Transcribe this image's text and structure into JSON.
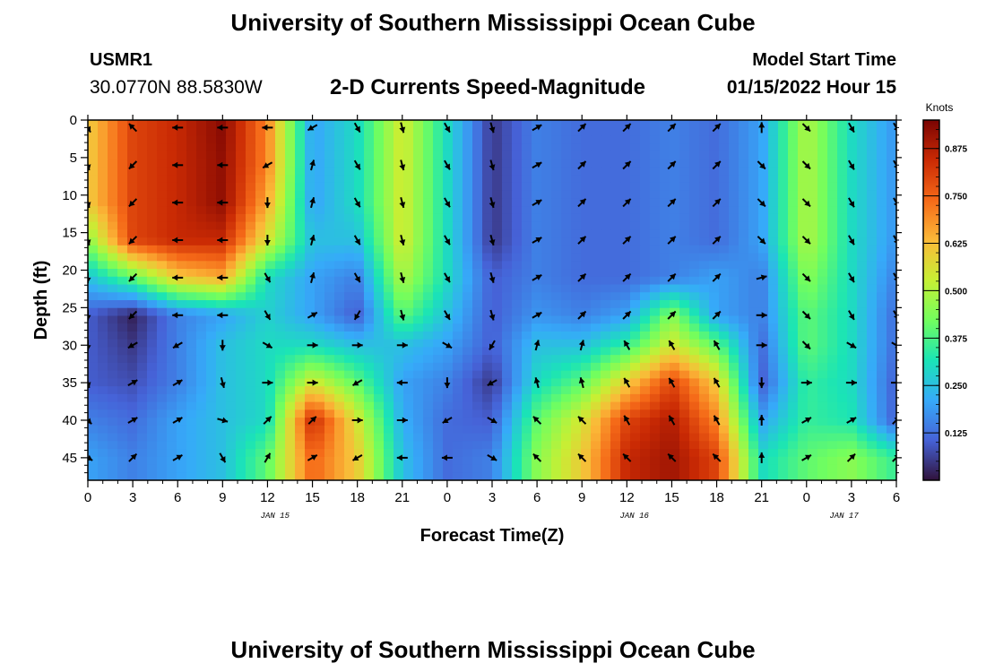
{
  "header": {
    "title": "University of Southern Mississippi Ocean Cube",
    "station_id": "USMR1",
    "station_location": "30.0770N  88.5830W",
    "chart_title": "2-D Currents Speed-Magnitude",
    "model_label": "Model Start Time",
    "model_time": "01/15/2022 Hour 15"
  },
  "footer": {
    "title": "University of Southern Mississippi Ocean Cube"
  },
  "chart_data": {
    "type": "heatmap",
    "title": "2-D Currents Speed-Magnitude",
    "xlabel": "Forecast Time(Z)",
    "ylabel": "Depth (ft)",
    "colorbar_label": "Knots",
    "x_ticks": [
      "0",
      "3",
      "6",
      "9",
      "12",
      "15",
      "18",
      "21",
      "0",
      "3",
      "6",
      "9",
      "12",
      "15",
      "18",
      "21",
      "0",
      "3",
      "6"
    ],
    "date_labels": [
      "JAN 15",
      "JAN 16",
      "JAN 17"
    ],
    "y_ticks": [
      "0",
      "5",
      "10",
      "15",
      "20",
      "25",
      "30",
      "35",
      "40",
      "45"
    ],
    "ylim": [
      0,
      48
    ],
    "xlim_hours": [
      0,
      54
    ],
    "colorbar_ticks": [
      "0.875",
      "0.750",
      "0.625",
      "0.500",
      "0.375",
      "0.250",
      "0.125"
    ],
    "colorbar_range": [
      0,
      0.95
    ],
    "colormap": [
      "#30123b",
      "#4662d7",
      "#36aaf9",
      "#1ae4b6",
      "#72fe5e",
      "#c7ef34",
      "#fbb938",
      "#f56918",
      "#ca2a04",
      "#7a0403"
    ],
    "grid": false,
    "vector_hours": [
      0,
      3,
      6,
      9,
      12,
      15,
      18,
      21,
      24,
      27,
      30,
      33,
      36,
      39,
      42,
      45,
      48,
      51,
      54
    ],
    "vector_depths": [
      1,
      6,
      11,
      16,
      21,
      26,
      30,
      35,
      40,
      45
    ],
    "speed_grid": [
      [
        0.6,
        0.8,
        0.85,
        0.93,
        0.7,
        0.2,
        0.3,
        0.55,
        0.3,
        0.05,
        0.15,
        0.12,
        0.12,
        0.15,
        0.12,
        0.2,
        0.5,
        0.3,
        0.18
      ],
      [
        0.6,
        0.8,
        0.85,
        0.92,
        0.7,
        0.2,
        0.3,
        0.55,
        0.3,
        0.05,
        0.15,
        0.12,
        0.12,
        0.15,
        0.12,
        0.2,
        0.5,
        0.3,
        0.18
      ],
      [
        0.6,
        0.8,
        0.85,
        0.92,
        0.65,
        0.2,
        0.3,
        0.55,
        0.3,
        0.05,
        0.15,
        0.12,
        0.12,
        0.15,
        0.12,
        0.2,
        0.5,
        0.3,
        0.18
      ],
      [
        0.45,
        0.8,
        0.85,
        0.85,
        0.55,
        0.25,
        0.25,
        0.55,
        0.3,
        0.05,
        0.15,
        0.12,
        0.12,
        0.15,
        0.12,
        0.2,
        0.5,
        0.3,
        0.18
      ],
      [
        0.25,
        0.4,
        0.6,
        0.65,
        0.3,
        0.2,
        0.15,
        0.5,
        0.3,
        0.1,
        0.15,
        0.12,
        0.12,
        0.15,
        0.2,
        0.15,
        0.45,
        0.3,
        0.15
      ],
      [
        0.1,
        0.02,
        0.15,
        0.2,
        0.28,
        0.2,
        0.1,
        0.4,
        0.25,
        0.1,
        0.18,
        0.15,
        0.2,
        0.45,
        0.2,
        0.15,
        0.4,
        0.3,
        0.12
      ],
      [
        0.1,
        0.05,
        0.15,
        0.25,
        0.3,
        0.3,
        0.25,
        0.25,
        0.2,
        0.1,
        0.25,
        0.25,
        0.35,
        0.55,
        0.4,
        0.12,
        0.4,
        0.3,
        0.12
      ],
      [
        0.1,
        0.08,
        0.15,
        0.25,
        0.3,
        0.55,
        0.4,
        0.2,
        0.15,
        0.05,
        0.3,
        0.4,
        0.6,
        0.8,
        0.6,
        0.1,
        0.35,
        0.3,
        0.1
      ],
      [
        0.15,
        0.12,
        0.2,
        0.25,
        0.3,
        0.85,
        0.55,
        0.22,
        0.12,
        0.1,
        0.4,
        0.55,
        0.8,
        0.88,
        0.7,
        0.2,
        0.35,
        0.32,
        0.1
      ],
      [
        0.2,
        0.15,
        0.2,
        0.25,
        0.4,
        0.75,
        0.6,
        0.25,
        0.12,
        0.15,
        0.45,
        0.6,
        0.85,
        0.9,
        0.8,
        0.3,
        0.4,
        0.45,
        0.35
      ]
    ],
    "vector_dirs_deg": [
      [
        150,
        315,
        270,
        270,
        270,
        240,
        150,
        165,
        150,
        165,
        60,
        45,
        45,
        45,
        45,
        0,
        135,
        150,
        150
      ],
      [
        165,
        225,
        270,
        270,
        240,
        15,
        150,
        165,
        150,
        165,
        60,
        45,
        45,
        45,
        45,
        135,
        135,
        150,
        150
      ],
      [
        165,
        225,
        270,
        270,
        180,
        15,
        150,
        165,
        150,
        165,
        60,
        45,
        45,
        45,
        45,
        135,
        135,
        150,
        150
      ],
      [
        165,
        225,
        270,
        270,
        180,
        15,
        150,
        165,
        150,
        165,
        60,
        45,
        45,
        45,
        45,
        135,
        135,
        150,
        150
      ],
      [
        180,
        225,
        270,
        270,
        150,
        15,
        150,
        165,
        150,
        165,
        60,
        45,
        45,
        45,
        45,
        75,
        135,
        150,
        150
      ],
      [
        180,
        225,
        270,
        270,
        150,
        60,
        210,
        165,
        150,
        165,
        60,
        45,
        45,
        45,
        45,
        90,
        135,
        150,
        150
      ],
      [
        180,
        240,
        240,
        180,
        120,
        90,
        90,
        90,
        120,
        210,
        15,
        15,
        330,
        330,
        330,
        90,
        135,
        120,
        120
      ],
      [
        165,
        60,
        60,
        165,
        90,
        90,
        240,
        270,
        180,
        240,
        345,
        345,
        330,
        330,
        330,
        180,
        90,
        90,
        90
      ],
      [
        135,
        60,
        60,
        105,
        45,
        45,
        90,
        90,
        240,
        120,
        315,
        315,
        330,
        330,
        330,
        0,
        60,
        60,
        45
      ],
      [
        120,
        45,
        60,
        150,
        30,
        60,
        240,
        270,
        270,
        120,
        315,
        315,
        315,
        315,
        315,
        0,
        60,
        45,
        45
      ]
    ]
  }
}
